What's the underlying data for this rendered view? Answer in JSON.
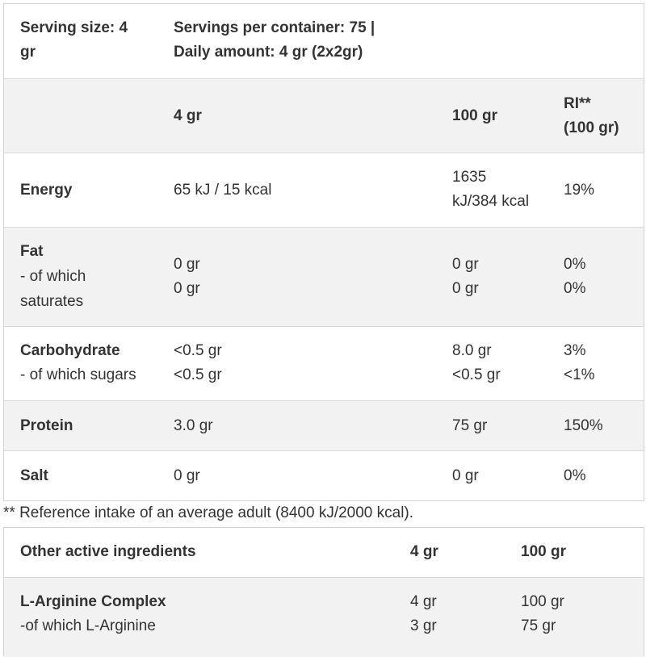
{
  "nutrition_table": {
    "header": {
      "serving_size": "Serving size: 4 gr",
      "servings_line1": "Servings per container: 75 |",
      "servings_line2": "Daily amount: 4 gr (2x2gr)"
    },
    "columns": {
      "col1": "4 gr",
      "col2": "100 gr",
      "ri_line1": "RI**",
      "ri_line2": "(100 gr)"
    },
    "rows": [
      {
        "name": "Energy",
        "sub": "",
        "v1": [
          "65 kJ / 15 kcal"
        ],
        "v2": [
          "1635",
          "kJ/384 kcal"
        ],
        "ri": [
          "19%"
        ]
      },
      {
        "name": "Fat",
        "sub_lines": [
          "- of which",
          "saturates"
        ],
        "v1": [
          "0 gr",
          "0 gr"
        ],
        "v2": [
          "0 gr",
          "0 gr"
        ],
        "ri": [
          "0%",
          "0%"
        ]
      },
      {
        "name": "Carbohydrate",
        "sub_lines": [
          "- of which sugars"
        ],
        "v1": [
          "<0.5 gr",
          "<0.5 gr"
        ],
        "v2": [
          "8.0 gr",
          "<0.5 gr"
        ],
        "ri": [
          "3%",
          "<1%"
        ]
      },
      {
        "name": "Protein",
        "v1": [
          "3.0 gr"
        ],
        "v2": [
          "75 gr"
        ],
        "ri": [
          "150%"
        ]
      },
      {
        "name": "Salt",
        "v1": [
          "0 gr"
        ],
        "v2": [
          "0 gr"
        ],
        "ri": [
          "0%"
        ]
      }
    ],
    "footnote": "** Reference intake of an average adult (8400 kJ/2000 kcal)."
  },
  "ingredients_table": {
    "header": {
      "title": "Other active ingredients",
      "col1": "4 gr",
      "col2": "100 gr"
    },
    "rows": [
      {
        "name": "L-Arginine Complex",
        "sub": "-of which L-Arginine",
        "v1": [
          "4 gr",
          "3 gr"
        ],
        "v2": [
          "100 gr",
          "75 gr"
        ]
      }
    ]
  }
}
